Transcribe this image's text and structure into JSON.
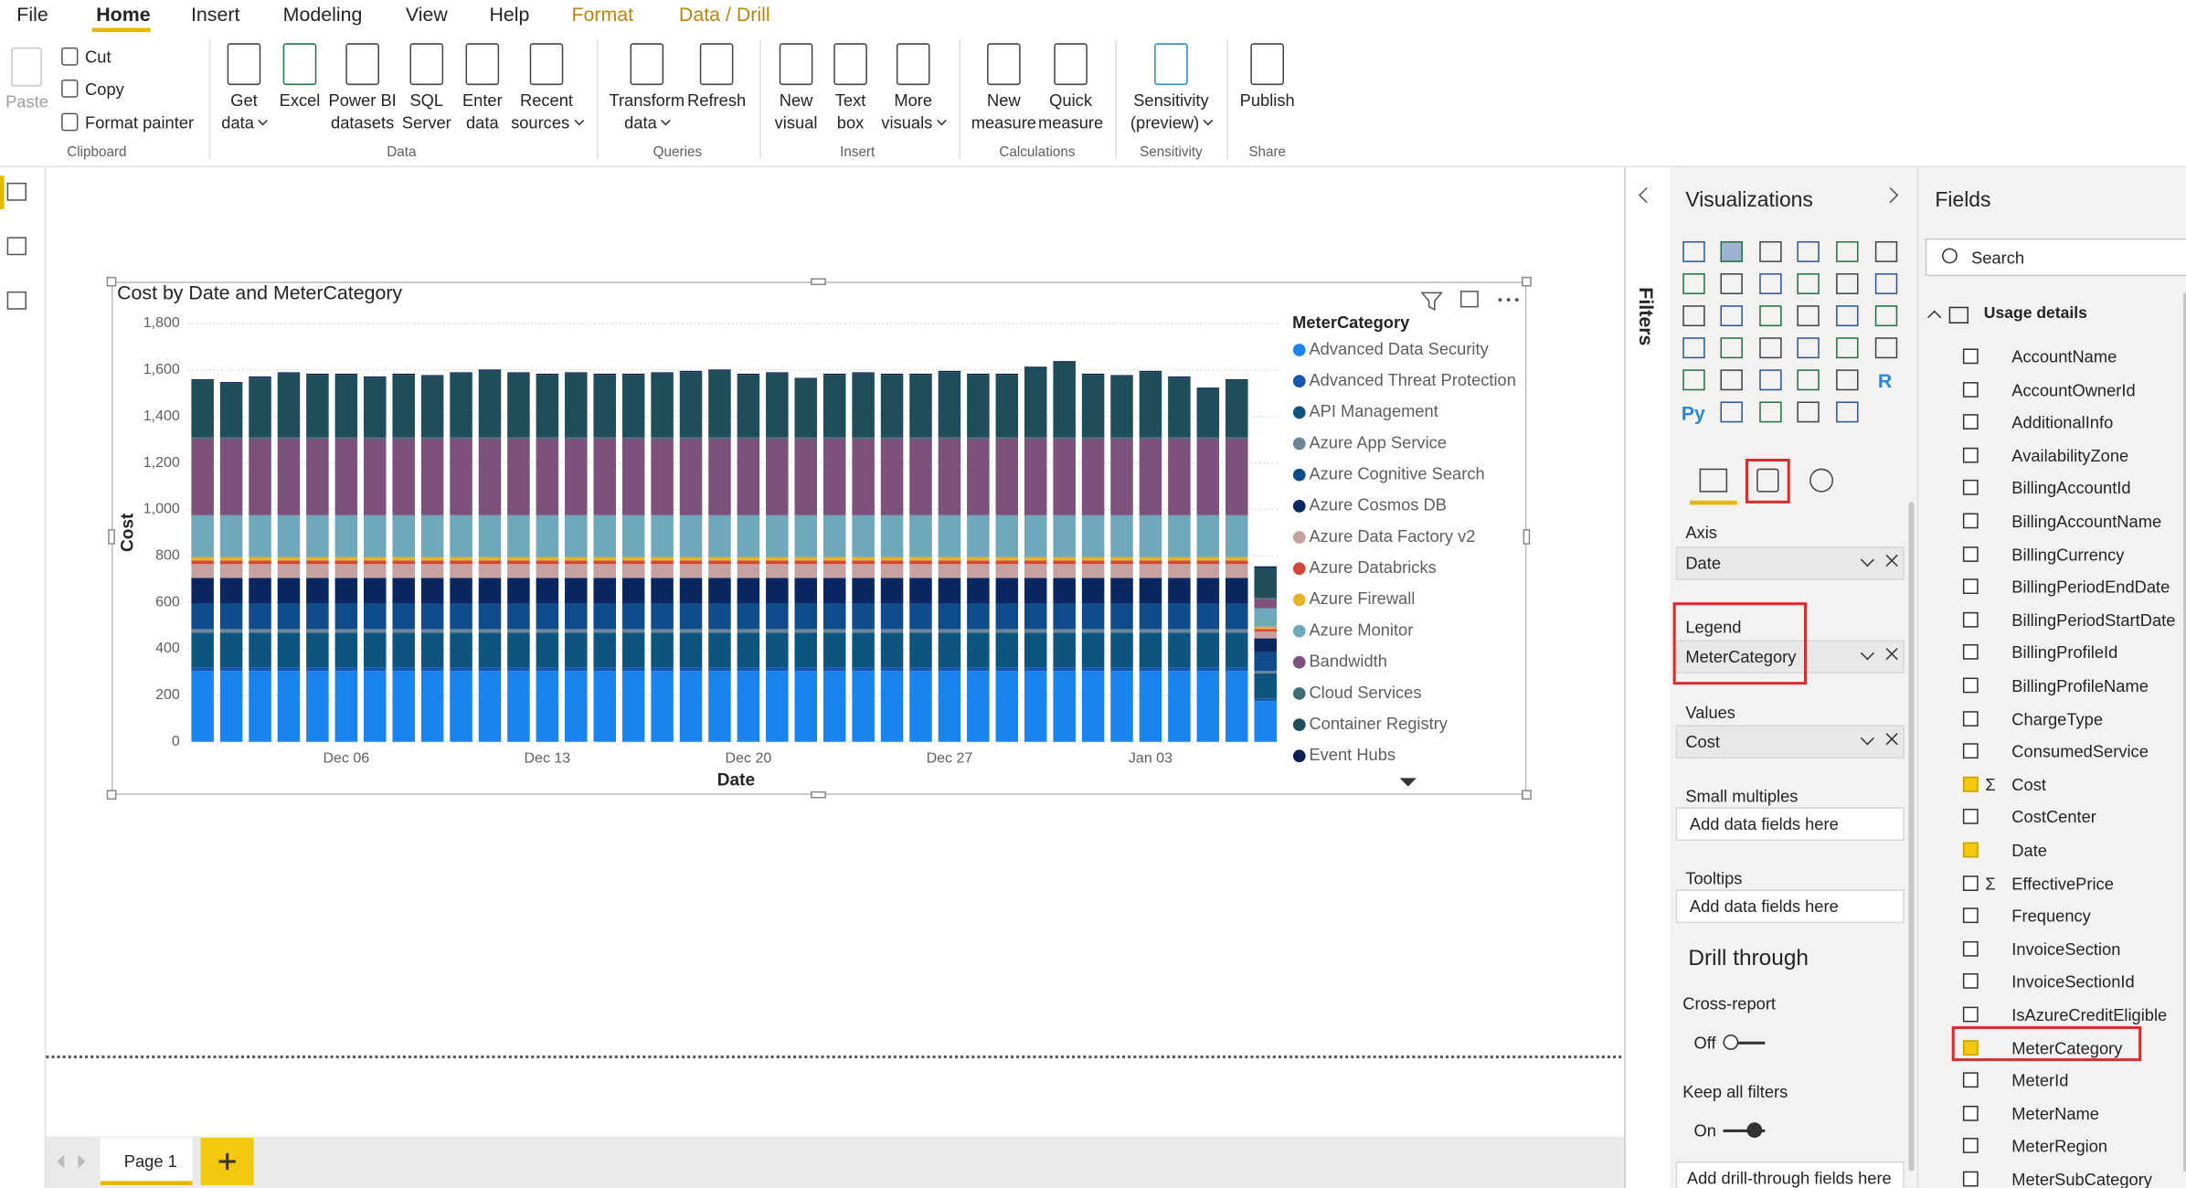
{
  "menu": {
    "tabs": [
      "File",
      "Home",
      "Insert",
      "Modeling",
      "View",
      "Help",
      "Format",
      "Data / Drill"
    ]
  },
  "ribbon": {
    "clipboard": {
      "paste": "Paste",
      "small": [
        "Cut",
        "Copy",
        "Format painter"
      ],
      "label": "Clipboard"
    },
    "groups": [
      {
        "label": "Data",
        "buttons": [
          [
            "Get",
            "data"
          ],
          [
            "Excel"
          ],
          [
            "Power BI",
            "datasets"
          ],
          [
            "SQL",
            "Server"
          ],
          [
            "Enter",
            "data"
          ],
          [
            "Recent",
            "sources"
          ]
        ]
      },
      {
        "label": "Queries",
        "buttons": [
          [
            "Transform",
            "data"
          ],
          [
            "Refresh"
          ]
        ]
      },
      {
        "label": "Insert",
        "buttons": [
          [
            "New",
            "visual"
          ],
          [
            "Text",
            "box"
          ],
          [
            "More",
            "visuals"
          ]
        ]
      },
      {
        "label": "Calculations",
        "buttons": [
          [
            "New",
            "measure"
          ],
          [
            "Quick",
            "measure"
          ]
        ]
      },
      {
        "label": "Sensitivity",
        "buttons": [
          [
            "Sensitivity",
            "(preview)"
          ]
        ]
      },
      {
        "label": "Share",
        "buttons": [
          [
            "Publish"
          ]
        ]
      }
    ]
  },
  "filters": {
    "title": "Filters"
  },
  "visualizations": {
    "title": "Visualizations",
    "icon_texts": [
      "Py",
      "R"
    ],
    "axis": {
      "label": "Axis",
      "field": "Date"
    },
    "legend": {
      "label": "Legend",
      "field": "MeterCategory"
    },
    "values": {
      "label": "Values",
      "field": "Cost"
    },
    "small_multiples": {
      "label": "Small multiples",
      "placeholder": "Add data fields here"
    },
    "tooltips": {
      "label": "Tooltips",
      "placeholder": "Add data fields here"
    },
    "drill_through": {
      "title": "Drill through",
      "cross_report": "Cross-report",
      "cross_report_state": "Off",
      "keep_all_filters": "Keep all filters",
      "keep_all_filters_state": "On",
      "placeholder": "Add drill-through fields here"
    }
  },
  "fields": {
    "title": "Fields",
    "search": "Search",
    "table": "Usage details",
    "sum_symbol": "Σ",
    "items": [
      {
        "name": "AccountName",
        "checked": false,
        "sum": false
      },
      {
        "name": "AccountOwnerId",
        "checked": false,
        "sum": false
      },
      {
        "name": "AdditionalInfo",
        "checked": false,
        "sum": false
      },
      {
        "name": "AvailabilityZone",
        "checked": false,
        "sum": false
      },
      {
        "name": "BillingAccountId",
        "checked": false,
        "sum": false
      },
      {
        "name": "BillingAccountName",
        "checked": false,
        "sum": false
      },
      {
        "name": "BillingCurrency",
        "checked": false,
        "sum": false
      },
      {
        "name": "BillingPeriodEndDate",
        "checked": false,
        "sum": false
      },
      {
        "name": "BillingPeriodStartDate",
        "checked": false,
        "sum": false
      },
      {
        "name": "BillingProfileId",
        "checked": false,
        "sum": false
      },
      {
        "name": "BillingProfileName",
        "checked": false,
        "sum": false
      },
      {
        "name": "ChargeType",
        "checked": false,
        "sum": false
      },
      {
        "name": "ConsumedService",
        "checked": false,
        "sum": false
      },
      {
        "name": "Cost",
        "checked": true,
        "sum": true
      },
      {
        "name": "CostCenter",
        "checked": false,
        "sum": false
      },
      {
        "name": "Date",
        "checked": true,
        "sum": false
      },
      {
        "name": "EffectivePrice",
        "checked": false,
        "sum": true
      },
      {
        "name": "Frequency",
        "checked": false,
        "sum": false
      },
      {
        "name": "InvoiceSection",
        "checked": false,
        "sum": false
      },
      {
        "name": "InvoiceSectionId",
        "checked": false,
        "sum": false
      },
      {
        "name": "IsAzureCreditEligible",
        "checked": false,
        "sum": false
      },
      {
        "name": "MeterCategory",
        "checked": true,
        "sum": false
      },
      {
        "name": "MeterId",
        "checked": false,
        "sum": false
      },
      {
        "name": "MeterName",
        "checked": false,
        "sum": false
      },
      {
        "name": "MeterRegion",
        "checked": false,
        "sum": false
      },
      {
        "name": "MeterSubCategory",
        "checked": false,
        "sum": false
      }
    ]
  },
  "pages": {
    "tabs": [
      "Page 1"
    ]
  },
  "chart_data": {
    "type": "stacked_bar",
    "title": "Cost by Date and MeterCategory",
    "x_label": "Date",
    "y_label": "Cost",
    "legend_title": "MeterCategory",
    "grid": true,
    "categories": [
      null,
      null,
      null,
      null,
      null,
      "Dec 06",
      null,
      null,
      null,
      null,
      null,
      null,
      "Dec 13",
      null,
      null,
      null,
      null,
      null,
      null,
      "Dec 20",
      null,
      null,
      null,
      null,
      null,
      null,
      "Dec 27",
      null,
      null,
      null,
      null,
      null,
      null,
      "Jan 03",
      null,
      null,
      null,
      null
    ],
    "ylim": [
      0,
      1800
    ],
    "yticks": [
      0,
      200,
      400,
      600,
      800,
      {
        "value": 1000,
        "label": "1,000"
      },
      {
        "value": 1200,
        "label": "1,200"
      },
      {
        "value": 1400,
        "label": "1,400"
      },
      {
        "value": 1600,
        "label": "1,600"
      },
      {
        "value": 1800,
        "label": "1,800"
      }
    ],
    "series": [
      {
        "name": "Advanced Data Security",
        "color": "#1a84ee",
        "values": [
          305,
          305,
          305,
          305,
          305,
          305,
          305,
          305,
          305,
          305,
          305,
          305,
          305,
          305,
          305,
          305,
          305,
          305,
          305,
          305,
          305,
          305,
          305,
          305,
          305,
          305,
          305,
          305,
          305,
          305,
          305,
          305,
          305,
          305,
          305,
          305,
          305,
          175
        ]
      },
      {
        "name": "Advanced Threat Protection",
        "color": "#1655b0",
        "values": [
          15,
          15,
          15,
          15,
          15,
          15,
          15,
          15,
          15,
          15,
          15,
          15,
          15,
          15,
          15,
          15,
          15,
          15,
          15,
          15,
          15,
          15,
          15,
          15,
          15,
          15,
          15,
          15,
          15,
          15,
          15,
          15,
          15,
          15,
          15,
          15,
          15,
          10
        ]
      },
      {
        "name": "API Management",
        "color": "#0d557f",
        "values": [
          150,
          150,
          150,
          150,
          150,
          150,
          150,
          150,
          150,
          150,
          150,
          150,
          150,
          150,
          150,
          150,
          150,
          150,
          150,
          150,
          150,
          150,
          150,
          150,
          150,
          150,
          150,
          150,
          150,
          150,
          150,
          150,
          150,
          150,
          150,
          150,
          150,
          110
        ]
      },
      {
        "name": "Azure App Service",
        "color": "#6c8595",
        "values": [
          15,
          15,
          15,
          15,
          15,
          15,
          15,
          15,
          15,
          15,
          15,
          15,
          15,
          15,
          15,
          15,
          15,
          15,
          15,
          15,
          15,
          15,
          15,
          15,
          15,
          15,
          15,
          15,
          15,
          15,
          15,
          15,
          15,
          15,
          15,
          15,
          15,
          10
        ]
      },
      {
        "name": "Azure Cognitive Search",
        "color": "#104b8b",
        "values": [
          110,
          110,
          110,
          110,
          110,
          110,
          110,
          110,
          110,
          110,
          110,
          110,
          110,
          110,
          110,
          110,
          110,
          110,
          110,
          110,
          110,
          110,
          110,
          110,
          110,
          110,
          110,
          110,
          110,
          110,
          110,
          110,
          110,
          110,
          110,
          110,
          110,
          80
        ]
      },
      {
        "name": "Azure Cosmos DB",
        "color": "#0b2762",
        "values": [
          110,
          110,
          110,
          110,
          110,
          110,
          110,
          110,
          110,
          110,
          110,
          110,
          110,
          110,
          110,
          110,
          110,
          110,
          110,
          110,
          110,
          110,
          110,
          110,
          110,
          110,
          110,
          110,
          110,
          110,
          110,
          110,
          110,
          110,
          110,
          110,
          110,
          60
        ]
      },
      {
        "name": "Azure Data Factory v2",
        "color": "#c5a29f",
        "values": [
          60,
          60,
          60,
          60,
          60,
          60,
          60,
          60,
          60,
          60,
          60,
          60,
          60,
          60,
          60,
          60,
          60,
          60,
          60,
          60,
          60,
          60,
          60,
          60,
          60,
          60,
          60,
          60,
          60,
          60,
          60,
          60,
          60,
          60,
          60,
          60,
          60,
          30
        ]
      },
      {
        "name": "Azure Databricks",
        "color": "#d2473a",
        "values": [
          15,
          15,
          15,
          15,
          15,
          15,
          15,
          15,
          15,
          15,
          15,
          15,
          15,
          15,
          15,
          15,
          15,
          15,
          15,
          15,
          15,
          15,
          15,
          15,
          15,
          15,
          15,
          15,
          15,
          15,
          15,
          15,
          15,
          15,
          15,
          15,
          15,
          10
        ]
      },
      {
        "name": "Azure Firewall",
        "color": "#e5b22a",
        "values": [
          15,
          15,
          15,
          15,
          15,
          15,
          15,
          15,
          15,
          15,
          15,
          15,
          15,
          15,
          15,
          15,
          15,
          15,
          15,
          15,
          15,
          15,
          15,
          15,
          15,
          15,
          15,
          15,
          15,
          15,
          15,
          15,
          15,
          15,
          15,
          15,
          15,
          10
        ]
      },
      {
        "name": "Azure Monitor",
        "color": "#6ea8ba",
        "values": [
          180,
          180,
          180,
          180,
          180,
          180,
          180,
          180,
          180,
          180,
          180,
          180,
          180,
          180,
          180,
          180,
          180,
          180,
          180,
          180,
          180,
          180,
          180,
          180,
          180,
          180,
          180,
          180,
          180,
          180,
          180,
          180,
          180,
          180,
          180,
          180,
          180,
          80
        ]
      },
      {
        "name": "Bandwidth",
        "color": "#7c517b",
        "values": [
          330,
          330,
          330,
          330,
          330,
          330,
          330,
          330,
          330,
          330,
          330,
          330,
          330,
          330,
          330,
          330,
          330,
          330,
          330,
          330,
          330,
          330,
          330,
          330,
          330,
          330,
          330,
          330,
          330,
          330,
          330,
          330,
          330,
          330,
          330,
          330,
          330,
          40
        ]
      },
      {
        "name": "Cloud Services",
        "color": "#3f6a78",
        "values": [
          5,
          5,
          5,
          5,
          5,
          5,
          5,
          5,
          5,
          5,
          5,
          5,
          5,
          5,
          5,
          5,
          5,
          5,
          5,
          5,
          5,
          5,
          5,
          5,
          5,
          5,
          5,
          5,
          5,
          5,
          5,
          5,
          5,
          5,
          5,
          5,
          5,
          5
        ]
      },
      {
        "name": "Container Registry",
        "color": "#1f4d59",
        "values": [
          245,
          233,
          257,
          275,
          269,
          269,
          257,
          269,
          263,
          275,
          287,
          275,
          269,
          275,
          269,
          269,
          275,
          281,
          287,
          269,
          275,
          251,
          269,
          275,
          269,
          269,
          281,
          269,
          269,
          299,
          323,
          269,
          263,
          281,
          257,
          209,
          245,
          130
        ]
      },
      {
        "name": "Event Hubs",
        "color": "#0c1f55",
        "values": [
          5,
          5,
          5,
          5,
          5,
          5,
          5,
          5,
          5,
          5,
          5,
          5,
          5,
          5,
          5,
          5,
          5,
          5,
          5,
          5,
          5,
          5,
          5,
          5,
          5,
          5,
          5,
          5,
          5,
          5,
          5,
          5,
          5,
          5,
          5,
          5,
          5,
          5
        ]
      }
    ]
  }
}
